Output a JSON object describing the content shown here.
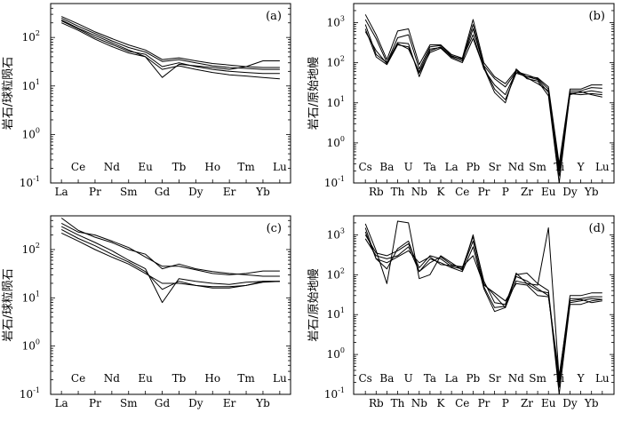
{
  "chart_data": [
    {
      "panel": "(a)",
      "type": "line",
      "ylabel": "岩石/球粒陨石",
      "yscale": "log",
      "ylim": [
        0.1,
        500
      ],
      "ytick_values": [
        0.1,
        1,
        10,
        100
      ],
      "categories": [
        "La",
        "Ce",
        "Pr",
        "Nd",
        "Sm",
        "Eu",
        "Gd",
        "Tb",
        "Dy",
        "Ho",
        "Er",
        "Tm",
        "Yb",
        "Lu"
      ],
      "series": [
        {
          "values": [
            270,
            190,
            130,
            95,
            70,
            55,
            35,
            38,
            33,
            29,
            27,
            25,
            24,
            24
          ]
        },
        {
          "values": [
            250,
            170,
            120,
            85,
            62,
            50,
            32,
            35,
            30,
            26,
            24,
            23,
            22,
            22
          ]
        },
        {
          "values": [
            230,
            155,
            110,
            78,
            55,
            40,
            15,
            28,
            26,
            24,
            22,
            25,
            33,
            33
          ]
        },
        {
          "values": [
            220,
            150,
            100,
            72,
            52,
            45,
            25,
            30,
            25,
            22,
            20,
            19,
            18,
            18
          ]
        },
        {
          "values": [
            200,
            140,
            92,
            65,
            48,
            40,
            22,
            26,
            22,
            19,
            17,
            16,
            15,
            14
          ]
        }
      ]
    },
    {
      "panel": "(b)",
      "type": "line",
      "ylabel": "岩石/原始地幔",
      "yscale": "log",
      "ylim": [
        0.1,
        3000
      ],
      "ytick_values": [
        0.1,
        1,
        10,
        100,
        1000
      ],
      "categories": [
        "Cs",
        "Rb",
        "Ba",
        "Th",
        "U",
        "Nb",
        "Ta",
        "K",
        "La",
        "Ce",
        "Pb",
        "Pr",
        "Sr",
        "P",
        "Nd",
        "Zr",
        "Sm",
        "Eu",
        "Ti",
        "Dy",
        "Y",
        "Yb",
        "Lu"
      ],
      "series": [
        {
          "values": [
            1600,
            500,
            120,
            620,
            700,
            90,
            280,
            280,
            160,
            130,
            1200,
            100,
            45,
            30,
            65,
            45,
            42,
            25,
            0.3,
            22,
            22,
            28,
            28
          ]
        },
        {
          "values": [
            1200,
            400,
            100,
            420,
            500,
            70,
            250,
            270,
            150,
            120,
            900,
            85,
            40,
            25,
            60,
            50,
            40,
            22,
            0.2,
            20,
            20,
            24,
            23
          ]
        },
        {
          "values": [
            900,
            160,
            100,
            320,
            300,
            45,
            200,
            250,
            140,
            110,
            700,
            80,
            22,
            12,
            55,
            45,
            38,
            18,
            0.15,
            18,
            18,
            20,
            18
          ]
        },
        {
          "values": [
            700,
            140,
            90,
            280,
            250,
            55,
            180,
            230,
            130,
            100,
            400,
            75,
            18,
            10,
            70,
            40,
            35,
            15,
            0.1,
            17,
            16,
            17,
            16
          ]
        },
        {
          "values": [
            600,
            200,
            95,
            300,
            220,
            60,
            220,
            240,
            145,
            125,
            500,
            70,
            28,
            16,
            60,
            42,
            30,
            20,
            0.25,
            16,
            19,
            16,
            14
          ]
        }
      ]
    },
    {
      "panel": "(c)",
      "type": "line",
      "ylabel": "岩石/球粒陨石",
      "yscale": "log",
      "ylim": [
        0.1,
        500
      ],
      "ytick_values": [
        0.1,
        1,
        10,
        100
      ],
      "categories": [
        "La",
        "Ce",
        "Pr",
        "Nd",
        "Sm",
        "Eu",
        "Gd",
        "Tb",
        "Dy",
        "Ho",
        "Er",
        "Tm",
        "Yb",
        "Lu"
      ],
      "series": [
        {
          "values": [
            450,
            250,
            180,
            140,
            100,
            80,
            40,
            50,
            40,
            35,
            32,
            30,
            28,
            28
          ]
        },
        {
          "values": [
            350,
            230,
            200,
            150,
            110,
            70,
            45,
            45,
            38,
            32,
            30,
            32,
            36,
            36
          ]
        },
        {
          "values": [
            300,
            200,
            140,
            95,
            60,
            40,
            8,
            25,
            22,
            20,
            19,
            21,
            22,
            22
          ]
        },
        {
          "values": [
            260,
            170,
            120,
            80,
            55,
            35,
            15,
            22,
            18,
            17,
            17,
            18,
            21,
            22
          ]
        },
        {
          "values": [
            220,
            150,
            100,
            70,
            50,
            32,
            20,
            20,
            18,
            16,
            16,
            18,
            22,
            22
          ]
        }
      ]
    },
    {
      "panel": "(d)",
      "type": "line",
      "ylabel": "岩石/原始地幔",
      "yscale": "log",
      "ylim": [
        0.1,
        3000
      ],
      "ytick_values": [
        0.1,
        1,
        10,
        100,
        1000
      ],
      "categories": [
        "Cs",
        "Rb",
        "Ba",
        "Th",
        "U",
        "Nb",
        "Ta",
        "K",
        "La",
        "Ce",
        "Pb",
        "Pr",
        "Sr",
        "P",
        "Nd",
        "Zr",
        "Sm",
        "Eu",
        "Ti",
        "Dy",
        "Y",
        "Yb",
        "Lu"
      ],
      "series": [
        {
          "values": [
            1900,
            400,
            60,
            2200,
            2000,
            80,
            100,
            300,
            200,
            130,
            1000,
            60,
            30,
            15,
            110,
            60,
            55,
            1500,
            0.25,
            30,
            30,
            35,
            35
          ]
        },
        {
          "values": [
            1500,
            250,
            140,
            450,
            700,
            120,
            200,
            280,
            180,
            150,
            900,
            70,
            20,
            18,
            100,
            110,
            60,
            40,
            0.15,
            25,
            25,
            28,
            28
          ]
        },
        {
          "values": [
            1000,
            350,
            300,
            400,
            600,
            150,
            300,
            250,
            160,
            140,
            700,
            50,
            15,
            16,
            90,
            70,
            45,
            30,
            0.2,
            20,
            22,
            25,
            24
          ]
        },
        {
          "values": [
            800,
            300,
            250,
            300,
            500,
            120,
            250,
            200,
            150,
            120,
            500,
            45,
            12,
            15,
            70,
            60,
            40,
            35,
            0.1,
            18,
            18,
            22,
            24
          ]
        },
        {
          "values": [
            1200,
            250,
            200,
            280,
            400,
            200,
            280,
            180,
            170,
            160,
            300,
            55,
            35,
            22,
            60,
            55,
            30,
            28,
            0.3,
            22,
            24,
            20,
            22
          ]
        }
      ]
    }
  ]
}
